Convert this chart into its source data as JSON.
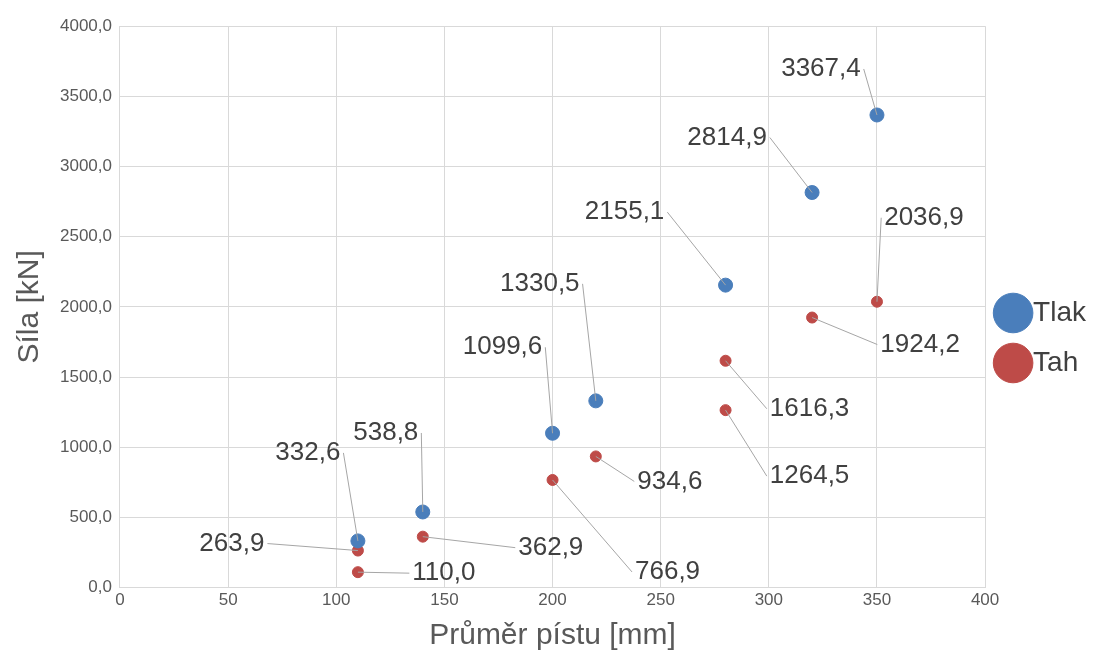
{
  "chart_data": {
    "type": "scatter",
    "xlabel": "Průměr pístu [mm]",
    "ylabel": "Síla [kN]",
    "xlim": [
      0,
      400
    ],
    "xticks": [
      0,
      50,
      100,
      150,
      200,
      250,
      300,
      350,
      400
    ],
    "ylim": [
      0,
      4000
    ],
    "yticks": [
      {
        "value": 0,
        "label": "0,0"
      },
      {
        "value": 500,
        "label": "500,0"
      },
      {
        "value": 1000,
        "label": "1000,0"
      },
      {
        "value": 1500,
        "label": "1500,0"
      },
      {
        "value": 2000,
        "label": "2000,0"
      },
      {
        "value": 2500,
        "label": "2500,0"
      },
      {
        "value": 3000,
        "label": "3000,0"
      },
      {
        "value": 3500,
        "label": "3500,0"
      },
      {
        "value": 4000,
        "label": "4000,0"
      }
    ],
    "grid": true,
    "legend": "right",
    "marker": "circle",
    "series": [
      {
        "name": "Tlak",
        "color": "#4a7ebb",
        "x": [
          110,
          140,
          200,
          220,
          280,
          320,
          350
        ],
        "values": [
          332.6,
          538.8,
          1099.6,
          1330.5,
          2155.1,
          2814.9,
          3367.4
        ],
        "value_labels": [
          "332,6",
          "538,8",
          "1099,6",
          "1330,5",
          "2155,1",
          "2814,9",
          "3367,4"
        ]
      },
      {
        "name": "Tah",
        "color": "#be4b48",
        "x": [
          110,
          110,
          140,
          200,
          220,
          280,
          280,
          320,
          350
        ],
        "values": [
          263.9,
          110.0,
          362.9,
          766.9,
          934.6,
          1264.5,
          1616.3,
          1924.2,
          2036.9
        ],
        "value_labels": [
          "263,9",
          "110,0",
          "362,9",
          "766,9",
          "934,6",
          "1264,5",
          "1616,3",
          "1924,2",
          "2036,9"
        ]
      }
    ]
  }
}
